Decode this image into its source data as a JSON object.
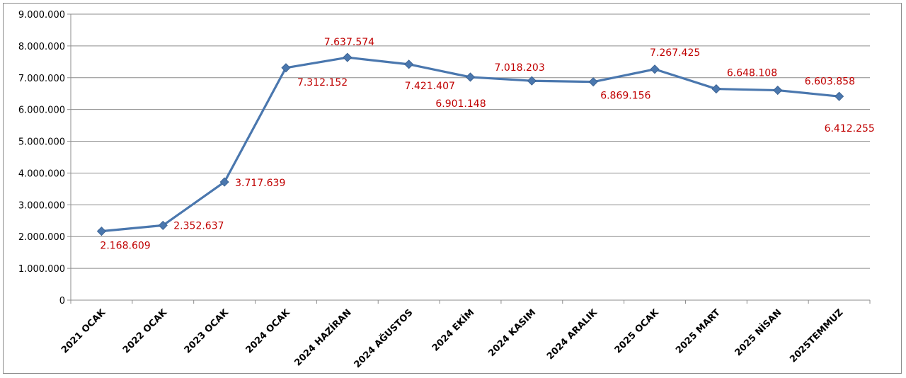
{
  "chart_data": {
    "type": "line",
    "title": "",
    "xlabel": "",
    "ylabel": "",
    "ylim": [
      0,
      9000000
    ],
    "yticks": [
      "0",
      "1.000.000",
      "2.000.000",
      "3.000.000",
      "4.000.000",
      "5.000.000",
      "6.000.000",
      "7.000.000",
      "8.000.000",
      "9.000.000"
    ],
    "grid": true,
    "legend": "none",
    "categories": [
      "2021 OCAK",
      "2022 OCAK",
      "2023 OCAK",
      "2024 OCAK",
      "2024 HAZİRAN",
      "2024 AĞUSTOS",
      "2024 EKİM",
      "2024 KASIM",
      "2024 ARALIK",
      "2025 OCAK",
      "2025 MART",
      "2025 NİSAN",
      "2025TEMMUZ"
    ],
    "series": [
      {
        "values": [
          2168609,
          2352637,
          3717639,
          7312152,
          7637574,
          7421407,
          7018203,
          6901148,
          6869156,
          7267425,
          6648108,
          6603858,
          6412255
        ],
        "labels": [
          "2.168.609",
          "2.352.637",
          "3.717.639",
          "7.312.152",
          "7.637.574",
          "7.421.407",
          "7.018.203",
          "6.901.148",
          "6.869.156",
          "7.267.425",
          "6.648.108",
          "6.603.858",
          "6.412.255"
        ]
      }
    ],
    "colors": {
      "line": "#4a77ae",
      "marker": "#4a77ae",
      "label": "#c00000",
      "grid": "#8c8c8c"
    }
  }
}
